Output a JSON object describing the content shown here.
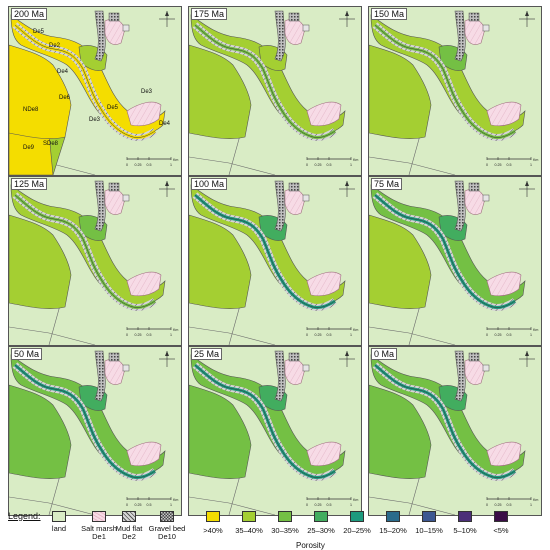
{
  "panels": [
    {
      "age": "200 Ma",
      "labels": [
        "De5",
        "De2",
        "De4",
        "De6",
        "NDe8",
        "De3",
        "De5",
        "De3",
        "De4",
        "De9",
        "SDe8"
      ]
    },
    {
      "age": "175 Ma"
    },
    {
      "age": "150 Ma"
    },
    {
      "age": "125 Ma"
    },
    {
      "age": "100 Ma"
    },
    {
      "age": "75 Ma"
    },
    {
      "age": "50 Ma"
    },
    {
      "age": "25 Ma"
    },
    {
      "age": "0 Ma"
    }
  ],
  "scale": {
    "ticks": [
      "0",
      "0.25",
      "0.5",
      "1"
    ],
    "unit": "Km"
  },
  "legend": {
    "title": "Legend:",
    "facies": [
      {
        "line1": "land",
        "line2": "",
        "color": "#d9ecc5"
      },
      {
        "line1": "Salt marsh",
        "line2": "De1",
        "color": "#f7dbe6"
      },
      {
        "line1": "Mud flat",
        "line2": "De2",
        "color": "#bdbdbd"
      },
      {
        "line1": "Gravel bed",
        "line2": "De10",
        "color": "#8a8a8a"
      }
    ],
    "porosity": [
      {
        "label": ">40%",
        "color": "#f4dd00"
      },
      {
        "label": "35–40%",
        "color": "#a4cf32"
      },
      {
        "label": "30–35%",
        "color": "#74c044"
      },
      {
        "label": "25–30%",
        "color": "#42ad5f"
      },
      {
        "label": "20–25%",
        "color": "#1d9a7e"
      },
      {
        "label": "15–20%",
        "color": "#2a6b8c"
      },
      {
        "label": "10–15%",
        "color": "#3c5791"
      },
      {
        "label": "5–10%",
        "color": "#4b2f78"
      },
      {
        "label": "<5%",
        "color": "#3a0d46"
      }
    ],
    "porosity_title": "Porosity"
  },
  "palettes": [
    {
      "main": "#f4dd00",
      "west": "#f4dd00",
      "mid": "#a4cf32",
      "ch": "#f4dd00"
    },
    {
      "main": "#a4cf32",
      "west": "#a4cf32",
      "mid": "#a4cf32",
      "ch": "#74c044"
    },
    {
      "main": "#a4cf32",
      "west": "#a4cf32",
      "mid": "#74c044",
      "ch": "#74c044"
    },
    {
      "main": "#a4cf32",
      "west": "#a4cf32",
      "mid": "#74c044",
      "ch": "#74c044"
    },
    {
      "main": "#a4cf32",
      "west": "#a4cf32",
      "mid": "#42ad5f",
      "ch": "#1d9a7e"
    },
    {
      "main": "#74c044",
      "west": "#a4cf32",
      "mid": "#42ad5f",
      "ch": "#1d9a7e"
    },
    {
      "main": "#74c044",
      "west": "#74c044",
      "mid": "#42ad5f",
      "ch": "#1d9a7e"
    },
    {
      "main": "#74c044",
      "west": "#74c044",
      "mid": "#42ad5f",
      "ch": "#1d9a7e"
    },
    {
      "main": "#74c044",
      "west": "#74c044",
      "mid": "#42ad5f",
      "ch": "#1d9a7e"
    }
  ]
}
